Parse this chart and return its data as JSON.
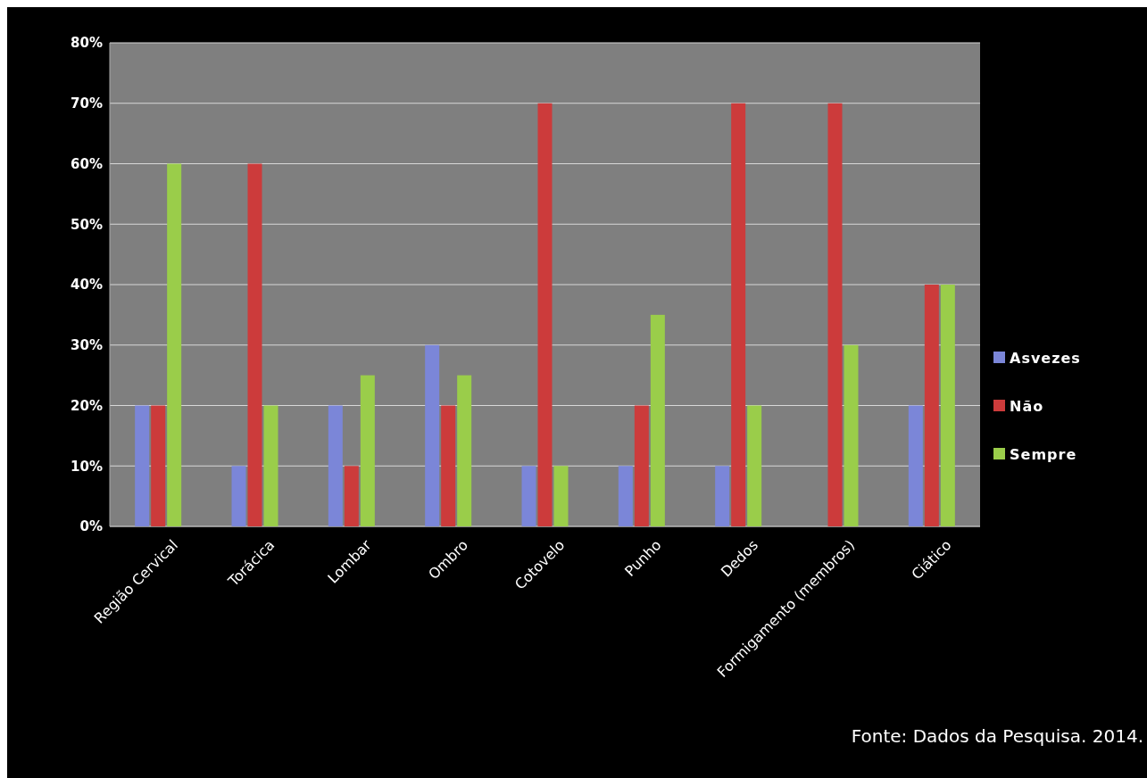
{
  "chart_data": {
    "type": "bar",
    "categories": [
      "Região Cervical",
      "Torácica",
      "Lombar",
      "Ombro",
      "Cotovelo",
      "Punho",
      "Dedos",
      "Formigamento (membros)",
      "Ciático"
    ],
    "series": [
      {
        "name": "Asvezes",
        "color": "#7b86d8",
        "values": [
          20,
          10,
          20,
          30,
          10,
          10,
          10,
          0,
          20
        ]
      },
      {
        "name": "Não",
        "color": "#cc3b3b",
        "values": [
          20,
          60,
          10,
          20,
          70,
          20,
          70,
          70,
          40
        ]
      },
      {
        "name": "Sempre",
        "color": "#9acd4a",
        "values": [
          60,
          20,
          25,
          25,
          10,
          35,
          20,
          30,
          40
        ]
      }
    ],
    "ylim": [
      0,
      80
    ],
    "yticks": [
      {
        "value": 0,
        "label": "0%"
      },
      {
        "value": 10,
        "label": "10%"
      },
      {
        "value": 20,
        "label": "20%"
      },
      {
        "value": 30,
        "label": "30%"
      },
      {
        "value": 40,
        "label": "40%"
      },
      {
        "value": 50,
        "label": "50%"
      },
      {
        "value": 60,
        "label": "60%"
      },
      {
        "value": 70,
        "label": "70%"
      },
      {
        "value": 80,
        "label": "80%"
      }
    ],
    "grid": "y",
    "legend": "right",
    "annotations": [
      "Fonte: Dados da Pesquisa. 2014."
    ]
  }
}
